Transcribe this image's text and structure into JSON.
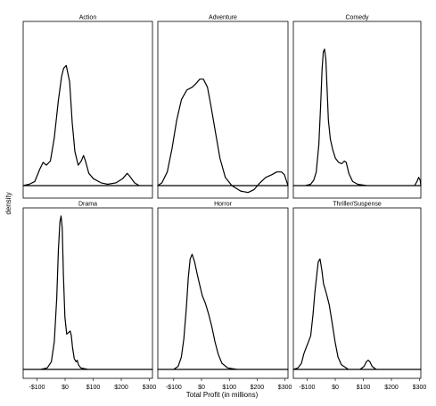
{
  "chart_data": {
    "type": "area",
    "plot_kind": "faceted density",
    "xlabel": "Total Profit (in millions)",
    "ylabel": "density",
    "x_ticks": [
      {
        "value": -100,
        "label": "-$100"
      },
      {
        "value": 0,
        "label": "$0"
      },
      {
        "value": 100,
        "label": "$100"
      },
      {
        "value": 200,
        "label": "$200"
      },
      {
        "value": 300,
        "label": "$300"
      }
    ],
    "facets": [
      {
        "name": "Action",
        "xlim": [
          -130,
          260
        ],
        "points": [
          [
            -130,
            0.0
          ],
          [
            -112,
            0.01
          ],
          [
            -95,
            0.03
          ],
          [
            -80,
            0.12
          ],
          [
            -70,
            0.17
          ],
          [
            -60,
            0.15
          ],
          [
            -48,
            0.18
          ],
          [
            -36,
            0.35
          ],
          [
            -24,
            0.62
          ],
          [
            -14,
            0.8
          ],
          [
            -8,
            0.86
          ],
          [
            0,
            0.88
          ],
          [
            10,
            0.76
          ],
          [
            18,
            0.46
          ],
          [
            26,
            0.25
          ],
          [
            36,
            0.15
          ],
          [
            45,
            0.18
          ],
          [
            52,
            0.22
          ],
          [
            58,
            0.18
          ],
          [
            68,
            0.09
          ],
          [
            82,
            0.05
          ],
          [
            105,
            0.02
          ],
          [
            125,
            0.01
          ],
          [
            150,
            0.02
          ],
          [
            170,
            0.05
          ],
          [
            184,
            0.09
          ],
          [
            194,
            0.06
          ],
          [
            206,
            0.02
          ],
          [
            220,
            0.0
          ],
          [
            240,
            0.0
          ],
          [
            260,
            0.0
          ]
        ]
      },
      {
        "name": "Adventure",
        "xlim": [
          -140,
          300
        ],
        "points": [
          [
            -140,
            0.0
          ],
          [
            -126,
            0.02
          ],
          [
            -108,
            0.1
          ],
          [
            -92,
            0.27
          ],
          [
            -76,
            0.48
          ],
          [
            -60,
            0.63
          ],
          [
            -42,
            0.7
          ],
          [
            -24,
            0.72
          ],
          [
            -10,
            0.75
          ],
          [
            2,
            0.78
          ],
          [
            14,
            0.78
          ],
          [
            28,
            0.72
          ],
          [
            40,
            0.58
          ],
          [
            54,
            0.4
          ],
          [
            70,
            0.2
          ],
          [
            88,
            0.06
          ],
          [
            110,
            0.0
          ],
          [
            140,
            -0.04
          ],
          [
            165,
            -0.05
          ],
          [
            185,
            -0.03
          ],
          [
            205,
            0.02
          ],
          [
            225,
            0.06
          ],
          [
            245,
            0.08
          ],
          [
            262,
            0.1
          ],
          [
            278,
            0.1
          ],
          [
            288,
            0.08
          ],
          [
            300,
            0.0
          ]
        ]
      },
      {
        "name": "Comedy",
        "xlim": [
          -110,
          290
        ],
        "points": [
          [
            -110,
            0.0
          ],
          [
            -90,
            0.0
          ],
          [
            -72,
            0.0
          ],
          [
            -56,
            0.01
          ],
          [
            -46,
            0.04
          ],
          [
            -38,
            0.1
          ],
          [
            -30,
            0.3
          ],
          [
            -24,
            0.6
          ],
          [
            -20,
            0.85
          ],
          [
            -16,
            0.98
          ],
          [
            -12,
            1.0
          ],
          [
            -8,
            0.92
          ],
          [
            -4,
            0.7
          ],
          [
            0,
            0.48
          ],
          [
            6,
            0.34
          ],
          [
            14,
            0.26
          ],
          [
            22,
            0.2
          ],
          [
            32,
            0.17
          ],
          [
            42,
            0.16
          ],
          [
            50,
            0.18
          ],
          [
            56,
            0.17
          ],
          [
            64,
            0.09
          ],
          [
            76,
            0.03
          ],
          [
            92,
            0.01
          ],
          [
            120,
            0.0
          ],
          [
            160,
            0.0
          ],
          [
            200,
            0.0
          ],
          [
            240,
            0.0
          ],
          [
            270,
            0.0
          ],
          [
            278,
            0.03
          ],
          [
            283,
            0.06
          ],
          [
            288,
            0.04
          ],
          [
            290,
            0.0
          ]
        ]
      },
      {
        "name": "Drama",
        "xlim": [
          -140,
          300
        ],
        "points": [
          [
            -140,
            0.0
          ],
          [
            -110,
            0.0
          ],
          [
            -80,
            0.0
          ],
          [
            -58,
            0.01
          ],
          [
            -44,
            0.05
          ],
          [
            -34,
            0.18
          ],
          [
            -26,
            0.46
          ],
          [
            -20,
            0.78
          ],
          [
            -15,
            0.96
          ],
          [
            -11,
            1.0
          ],
          [
            -7,
            0.92
          ],
          [
            -3,
            0.62
          ],
          [
            2,
            0.34
          ],
          [
            8,
            0.23
          ],
          [
            14,
            0.24
          ],
          [
            20,
            0.25
          ],
          [
            24,
            0.22
          ],
          [
            28,
            0.14
          ],
          [
            34,
            0.07
          ],
          [
            40,
            0.05
          ],
          [
            44,
            0.06
          ],
          [
            48,
            0.03
          ],
          [
            56,
            0.01
          ],
          [
            80,
            0.0
          ],
          [
            120,
            0.0
          ],
          [
            200,
            0.0
          ],
          [
            300,
            0.0
          ]
        ]
      },
      {
        "name": "Horror",
        "xlim": [
          -110,
          300
        ],
        "points": [
          [
            -110,
            0.0
          ],
          [
            -80,
            0.0
          ],
          [
            -60,
            0.0
          ],
          [
            -46,
            0.02
          ],
          [
            -36,
            0.08
          ],
          [
            -28,
            0.2
          ],
          [
            -20,
            0.4
          ],
          [
            -14,
            0.6
          ],
          [
            -8,
            0.72
          ],
          [
            -2,
            0.75
          ],
          [
            6,
            0.7
          ],
          [
            14,
            0.62
          ],
          [
            22,
            0.55
          ],
          [
            30,
            0.48
          ],
          [
            40,
            0.43
          ],
          [
            50,
            0.36
          ],
          [
            60,
            0.28
          ],
          [
            70,
            0.18
          ],
          [
            80,
            0.1
          ],
          [
            92,
            0.04
          ],
          [
            110,
            0.01
          ],
          [
            140,
            0.0
          ],
          [
            200,
            0.0
          ],
          [
            250,
            0.0
          ],
          [
            300,
            0.0
          ]
        ]
      },
      {
        "name": "Thriller/Suspense",
        "xlim": [
          -140,
          300
        ],
        "points": [
          [
            -140,
            0.0
          ],
          [
            -124,
            0.01
          ],
          [
            -112,
            0.04
          ],
          [
            -104,
            0.1
          ],
          [
            -98,
            0.13
          ],
          [
            -92,
            0.16
          ],
          [
            -86,
            0.19
          ],
          [
            -80,
            0.22
          ],
          [
            -72,
            0.36
          ],
          [
            -66,
            0.5
          ],
          [
            -60,
            0.6
          ],
          [
            -54,
            0.7
          ],
          [
            -48,
            0.72
          ],
          [
            -42,
            0.65
          ],
          [
            -36,
            0.56
          ],
          [
            -30,
            0.52
          ],
          [
            -24,
            0.48
          ],
          [
            -16,
            0.42
          ],
          [
            -6,
            0.3
          ],
          [
            4,
            0.18
          ],
          [
            14,
            0.08
          ],
          [
            26,
            0.03
          ],
          [
            50,
            0.0
          ],
          [
            90,
            0.0
          ],
          [
            104,
            0.02
          ],
          [
            112,
            0.05
          ],
          [
            118,
            0.06
          ],
          [
            124,
            0.05
          ],
          [
            132,
            0.02
          ],
          [
            146,
            0.0
          ],
          [
            200,
            0.0
          ],
          [
            300,
            0.0
          ]
        ]
      }
    ]
  }
}
